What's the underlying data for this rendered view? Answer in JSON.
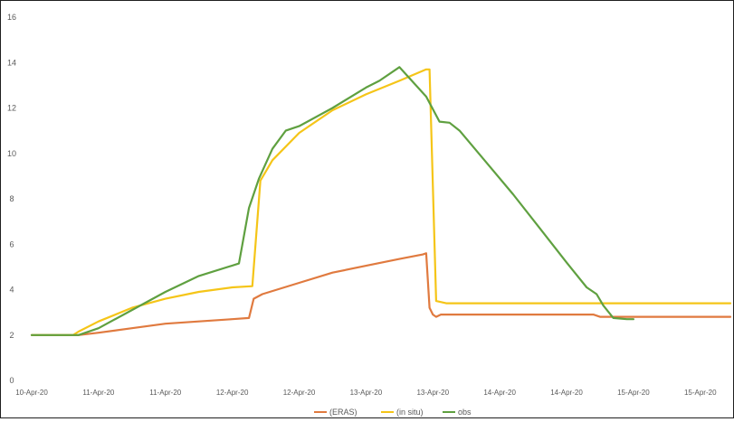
{
  "chart_data": {
    "type": "line",
    "title": "",
    "xlabel": "",
    "ylabel": "",
    "ylim": [
      0,
      16
    ],
    "yticks": [
      0,
      2,
      4,
      6,
      8,
      10,
      12,
      14,
      16
    ],
    "xlim": [
      0,
      10.45
    ],
    "xtick_values": [
      0,
      1,
      2,
      3,
      4,
      5,
      6,
      7,
      8,
      9,
      10
    ],
    "xtick_labels": [
      "10-Apr-20",
      "11-Apr-20",
      "11-Apr-20",
      "12-Apr-20",
      "12-Apr-20",
      "13-Apr-20",
      "13-Apr-20",
      "14-Apr-20",
      "14-Apr-20",
      "15-Apr-20",
      "15-Apr-20"
    ],
    "grid": false,
    "legend_position": "bottom",
    "series": [
      {
        "name": "(ERAS)",
        "color": "#e07a3f",
        "points": [
          [
            0.0,
            2.0
          ],
          [
            0.5,
            2.0
          ],
          [
            0.7,
            2.0
          ],
          [
            1.0,
            2.1
          ],
          [
            1.5,
            2.3
          ],
          [
            2.0,
            2.5
          ],
          [
            2.5,
            2.6
          ],
          [
            3.0,
            2.7
          ],
          [
            3.25,
            2.75
          ],
          [
            3.32,
            3.6
          ],
          [
            3.45,
            3.8
          ],
          [
            4.0,
            4.3
          ],
          [
            4.5,
            4.75
          ],
          [
            5.0,
            5.05
          ],
          [
            5.5,
            5.35
          ],
          [
            5.85,
            5.55
          ],
          [
            5.9,
            5.6
          ],
          [
            5.95,
            3.2
          ],
          [
            6.0,
            2.9
          ],
          [
            6.05,
            2.8
          ],
          [
            6.12,
            2.9
          ],
          [
            6.5,
            2.9
          ],
          [
            7.0,
            2.9
          ],
          [
            7.5,
            2.9
          ],
          [
            8.0,
            2.9
          ],
          [
            8.4,
            2.9
          ],
          [
            8.5,
            2.8
          ],
          [
            9.0,
            2.8
          ],
          [
            9.5,
            2.8
          ],
          [
            10.0,
            2.8
          ],
          [
            10.45,
            2.8
          ]
        ]
      },
      {
        "name": "(in situ)",
        "color": "#f5c518",
        "points": [
          [
            0.0,
            2.0
          ],
          [
            0.62,
            2.0
          ],
          [
            0.7,
            2.15
          ],
          [
            1.0,
            2.6
          ],
          [
            1.5,
            3.2
          ],
          [
            2.0,
            3.6
          ],
          [
            2.5,
            3.9
          ],
          [
            3.0,
            4.1
          ],
          [
            3.3,
            4.15
          ],
          [
            3.42,
            8.8
          ],
          [
            3.6,
            9.7
          ],
          [
            4.0,
            10.9
          ],
          [
            4.5,
            11.9
          ],
          [
            5.0,
            12.6
          ],
          [
            5.5,
            13.2
          ],
          [
            5.9,
            13.7
          ],
          [
            5.95,
            13.7
          ],
          [
            6.05,
            3.5
          ],
          [
            6.2,
            3.4
          ],
          [
            7.0,
            3.4
          ],
          [
            8.0,
            3.4
          ],
          [
            9.0,
            3.4
          ],
          [
            10.0,
            3.4
          ],
          [
            10.45,
            3.4
          ]
        ]
      },
      {
        "name": "obs",
        "color": "#5fa040",
        "points": [
          [
            0.0,
            2.0
          ],
          [
            0.7,
            2.0
          ],
          [
            1.0,
            2.3
          ],
          [
            1.5,
            3.1
          ],
          [
            2.0,
            3.9
          ],
          [
            2.5,
            4.6
          ],
          [
            3.1,
            5.15
          ],
          [
            3.25,
            7.6
          ],
          [
            3.4,
            8.9
          ],
          [
            3.6,
            10.2
          ],
          [
            3.8,
            11.0
          ],
          [
            4.0,
            11.2
          ],
          [
            4.5,
            12.0
          ],
          [
            5.0,
            12.9
          ],
          [
            5.2,
            13.2
          ],
          [
            5.5,
            13.8
          ],
          [
            5.9,
            12.5
          ],
          [
            6.1,
            11.4
          ],
          [
            6.25,
            11.35
          ],
          [
            6.4,
            11.0
          ],
          [
            6.8,
            9.6
          ],
          [
            7.2,
            8.2
          ],
          [
            7.6,
            6.7
          ],
          [
            8.0,
            5.2
          ],
          [
            8.3,
            4.1
          ],
          [
            8.45,
            3.8
          ],
          [
            8.55,
            3.3
          ],
          [
            8.7,
            2.75
          ],
          [
            8.9,
            2.7
          ],
          [
            9.0,
            2.7
          ]
        ]
      }
    ]
  }
}
